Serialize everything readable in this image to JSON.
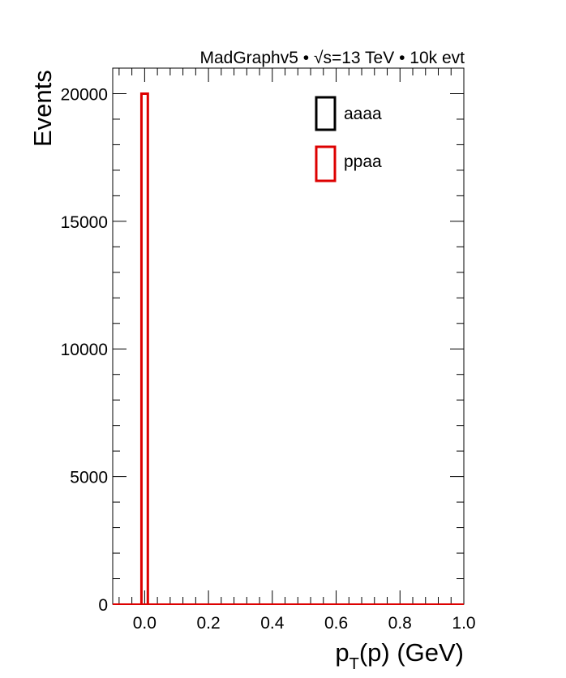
{
  "header": {
    "generator": "MadGraphv5",
    "bullet": "•",
    "sqrt_symbol": "√",
    "sqrt_s_label": "s=13 TeV",
    "events_label": "10k evt"
  },
  "chart_data": {
    "type": "histogram",
    "title": "",
    "ylabel": "Events",
    "xlabel": {
      "main": "p",
      "sub": "T",
      "rest": "(p) (GeV)"
    },
    "xlim": [
      -0.1,
      1.0
    ],
    "ylim": [
      0,
      21000
    ],
    "x_ticks": [
      0.0,
      0.2,
      0.4,
      0.6,
      0.8,
      1.0
    ],
    "x_tick_labels": [
      "0.0",
      "0.2",
      "0.4",
      "0.6",
      "0.8",
      "1.0"
    ],
    "y_ticks": [
      0,
      5000,
      10000,
      15000,
      20000
    ],
    "y_tick_labels": [
      "0",
      "5000",
      "10000",
      "15000",
      "20000"
    ],
    "legend_position": "top-right",
    "series": [
      {
        "name": "aaaa",
        "color": "#000000",
        "bins": []
      },
      {
        "name": "ppaa",
        "color": "#dd0000",
        "bins": [
          {
            "x_low": -0.01,
            "x_high": 0.01,
            "value": 20000
          }
        ]
      }
    ]
  }
}
